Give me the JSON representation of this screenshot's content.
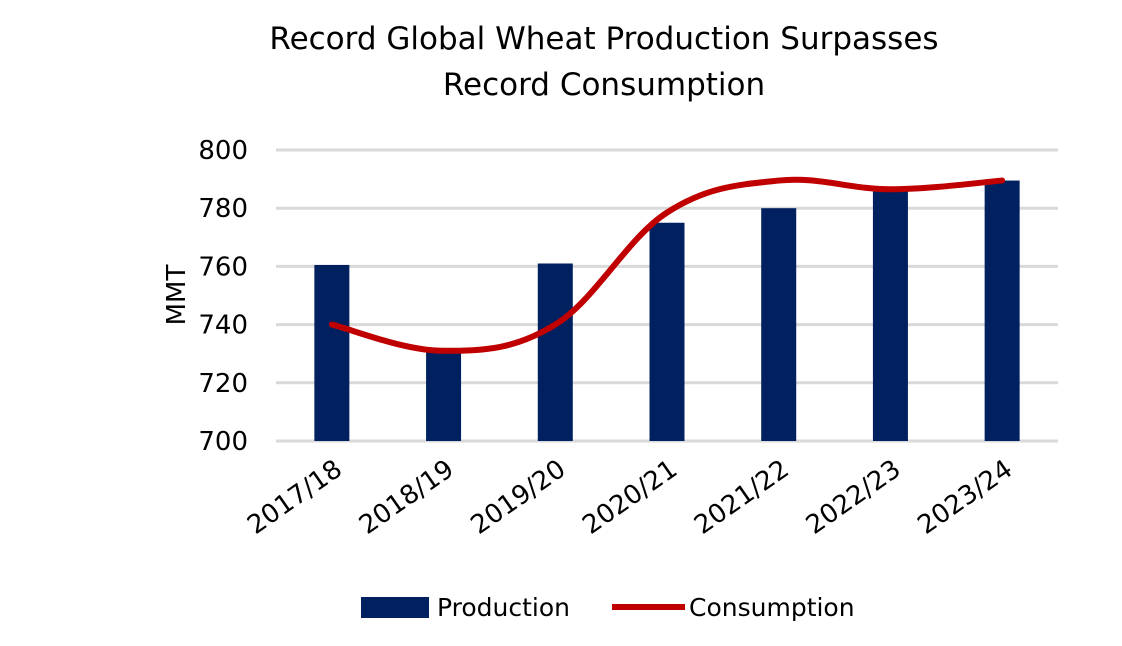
{
  "chart_data": {
    "type": "bar",
    "title_line1": "Record Global Wheat Production Surpasses",
    "title_line2": "Record Consumption",
    "ylabel": "MMT",
    "xlabel": "",
    "ylim": [
      700,
      800
    ],
    "yticks": [
      700,
      720,
      740,
      760,
      780,
      800
    ],
    "grid": true,
    "legend_placement": "bottom",
    "categories": [
      "2017/18",
      "2018/19",
      "2019/20",
      "2020/21",
      "2021/22",
      "2022/23",
      "2023/24"
    ],
    "series": [
      {
        "name": "Production",
        "kind": "bar",
        "color": "#002060",
        "values": [
          760.5,
          730.5,
          761,
          775,
          780,
          787,
          789.5
        ]
      },
      {
        "name": "Consumption",
        "kind": "line",
        "color": "#C00000",
        "values": [
          740,
          731,
          740,
          778.5,
          789.5,
          786.5,
          789.5
        ]
      }
    ]
  }
}
